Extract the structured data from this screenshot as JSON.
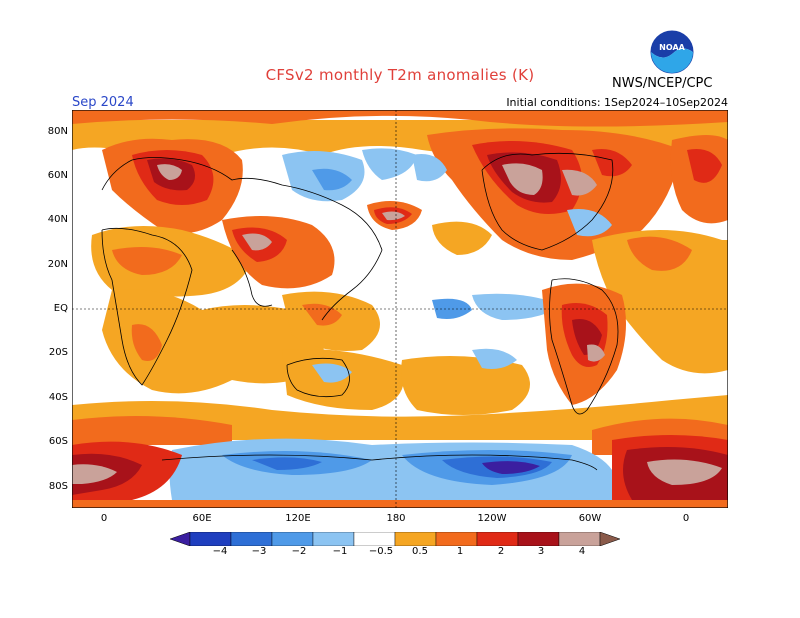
{
  "title": "CFSv2 monthly T2m anomalies (K)",
  "agency": "NWS/NCEP/CPC",
  "logo_text": "NOAA",
  "valid_month": "Sep 2024",
  "initial_conditions": "Initial conditions: 1Sep2024–10Sep2024",
  "lat_labels": [
    "80N",
    "60N",
    "40N",
    "20N",
    "EQ",
    "20S",
    "40S",
    "60S",
    "80S"
  ],
  "lon_labels": [
    "0",
    "60E",
    "120E",
    "180",
    "120W",
    "60W",
    "0"
  ],
  "colorbar": {
    "labels": [
      "−4",
      "−3",
      "−2",
      "−1",
      "−0.5",
      "0.5",
      "1",
      "2",
      "3",
      "4"
    ],
    "colors": [
      "#3b1fa0",
      "#1f3fbf",
      "#2e6fd6",
      "#4f9ae8",
      "#8cc4f2",
      "#ffffff",
      "#f5a623",
      "#f26b1d",
      "#e02a16",
      "#a8121a",
      "#c9a29a",
      "#8a5a4a"
    ]
  },
  "colors": {
    "title": "#e0403a",
    "month": "#2a47c8",
    "warm_light": "#f5a623",
    "warm_mid": "#f26b1d",
    "warm_strong": "#e02a16",
    "warm_deep": "#a8121a",
    "warm_extreme": "#c9a29a",
    "cold_light": "#8cc4f2",
    "cold_mid": "#4f9ae8",
    "cold_strong": "#2e6fd6",
    "cold_deep": "#3b1fa0"
  }
}
